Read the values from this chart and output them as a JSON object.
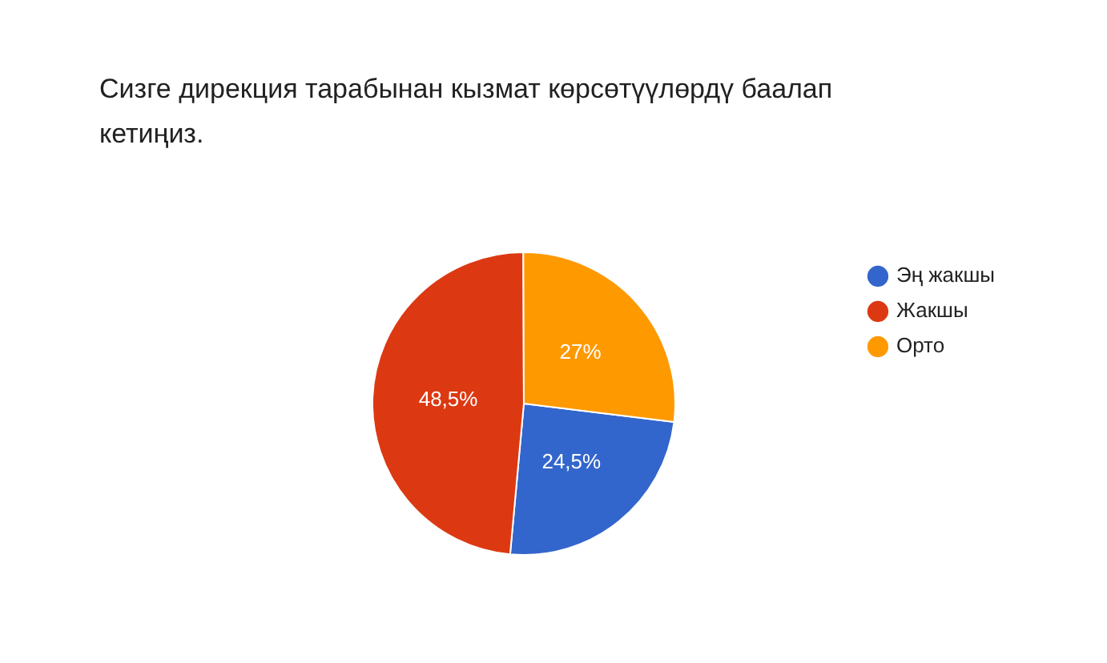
{
  "chart_data": {
    "type": "pie",
    "title": "Сизге дирекция тарабынан кызмат көрсөтүүлөрдү  баалап кетиңиз.",
    "categories": [
      "Эң жакшы",
      "Жакшы",
      "Орто"
    ],
    "values": [
      24.5,
      48.5,
      27
    ],
    "colors": [
      "#3366cc",
      "#dc3912",
      "#ff9900"
    ],
    "value_labels": [
      "24,5%",
      "48,5%",
      "27%"
    ],
    "legend": "right"
  }
}
